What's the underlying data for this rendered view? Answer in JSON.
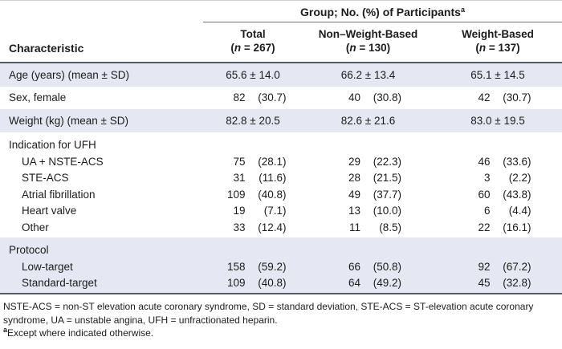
{
  "colors": {
    "row_shade": "#e5e8f2",
    "rule_dark": "#525c6a",
    "rule_light": "#6b7484",
    "top_hairline": "#c9cdd4",
    "text": "#1c1c1c"
  },
  "table": {
    "group_header": "Group; No. (%) of Participants",
    "group_header_sup": "a",
    "characteristic_header": "Characteristic",
    "n_symbol": "n",
    "columns": [
      {
        "label": "Total",
        "sub": "(n = 267)"
      },
      {
        "label": "Non–Weight-Based",
        "sub": "(n = 130)"
      },
      {
        "label": "Weight-Based",
        "sub": "(n = 137)"
      }
    ],
    "rows": [
      {
        "type": "data",
        "shaded": true,
        "label": "Age (years) (mean ± SD)",
        "values": [
          {
            "pm": "65.6 ± 14.0"
          },
          {
            "pm": "66.2 ± 13.4"
          },
          {
            "pm": "65.1 ± 14.5"
          }
        ]
      },
      {
        "type": "data",
        "shaded": false,
        "label": "Sex, female",
        "values": [
          {
            "n": "82",
            "pct": "(30.7)"
          },
          {
            "n": "40",
            "pct": "(30.8)"
          },
          {
            "n": "42",
            "pct": "(30.7)"
          }
        ]
      },
      {
        "type": "data",
        "shaded": true,
        "label": "Weight (kg) (mean ± SD)",
        "values": [
          {
            "pm": "82.8 ± 20.5"
          },
          {
            "pm": "82.6 ± 21.6"
          },
          {
            "pm": "83.0 ± 19.5"
          }
        ]
      },
      {
        "type": "section",
        "shaded": false,
        "label": "Indication for UFH",
        "items": [
          {
            "label": "UA + NSTE-ACS",
            "values": [
              {
                "n": "75",
                "pct": "(28.1)"
              },
              {
                "n": "29",
                "pct": "(22.3)"
              },
              {
                "n": "46",
                "pct": "(33.6)"
              }
            ]
          },
          {
            "label": "STE-ACS",
            "values": [
              {
                "n": "31",
                "pct": "(11.6)"
              },
              {
                "n": "28",
                "pct": "(21.5)"
              },
              {
                "n": "3",
                "pct": "(2.2)"
              }
            ]
          },
          {
            "label": "Atrial fibrillation",
            "values": [
              {
                "n": "109",
                "pct": "(40.8)"
              },
              {
                "n": "49",
                "pct": "(37.7)"
              },
              {
                "n": "60",
                "pct": "(43.8)"
              }
            ]
          },
          {
            "label": "Heart valve",
            "values": [
              {
                "n": "19",
                "pct": "(7.1)"
              },
              {
                "n": "13",
                "pct": "(10.0)"
              },
              {
                "n": "6",
                "pct": "(4.4)"
              }
            ]
          },
          {
            "label": "Other",
            "values": [
              {
                "n": "33",
                "pct": "(12.4)"
              },
              {
                "n": "11",
                "pct": "(8.5)"
              },
              {
                "n": "22",
                "pct": "(16.1)"
              }
            ]
          }
        ]
      },
      {
        "type": "section",
        "shaded": true,
        "label": "Protocol",
        "items": [
          {
            "label": "Low-target",
            "values": [
              {
                "n": "158",
                "pct": "(59.2)"
              },
              {
                "n": "66",
                "pct": "(50.8)"
              },
              {
                "n": "92",
                "pct": "(67.2)"
              }
            ]
          },
          {
            "label": "Standard-target",
            "values": [
              {
                "n": "109",
                "pct": "(40.8)"
              },
              {
                "n": "64",
                "pct": "(49.2)"
              },
              {
                "n": "45",
                "pct": "(32.8)"
              }
            ]
          }
        ]
      }
    ]
  },
  "footnotes": {
    "abbreviations": "NSTE-ACS = non-ST elevation acute coronary syndrome, SD = standard deviation, STE-ACS = ST-elevation acute coronary syndrome, UA = unstable angina, UFH = unfractionated heparin.",
    "note_sup": "a",
    "note_text": "Except where indicated otherwise."
  }
}
